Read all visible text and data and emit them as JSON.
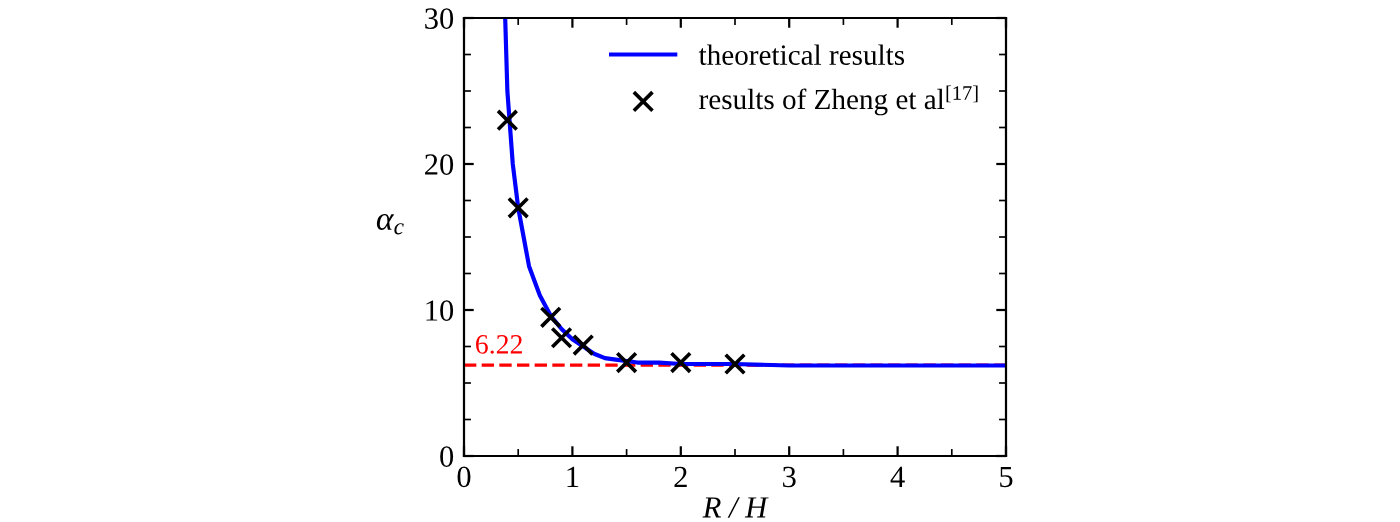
{
  "chart_data": {
    "type": "line",
    "xlabel": "R / H",
    "ylabel": "α$_{c}$",
    "xlim": [
      0,
      5
    ],
    "ylim": [
      0,
      30
    ],
    "xticks": [
      0,
      1,
      2,
      3,
      4,
      5
    ],
    "yticks": [
      0,
      10,
      20,
      30
    ],
    "series": [
      {
        "name": "theoretical results",
        "color": "#0000ff",
        "x": [
          0.38,
          0.4,
          0.45,
          0.5,
          0.55,
          0.6,
          0.7,
          0.8,
          0.9,
          1.0,
          1.1,
          1.2,
          1.3,
          1.4,
          1.6,
          1.8,
          2.0,
          2.5,
          3.0,
          4.0,
          5.0
        ],
        "values": [
          30,
          25,
          20,
          17,
          15,
          13,
          11,
          9.6,
          8.7,
          8.0,
          7.5,
          7.0,
          6.7,
          6.6,
          6.4,
          6.4,
          6.3,
          6.3,
          6.2,
          6.2,
          6.2
        ]
      },
      {
        "name": "results of Zheng et al$^{[17]}$",
        "type": "scatter",
        "marker": "cross",
        "color": "#000000",
        "x": [
          0.4,
          0.5,
          0.8,
          0.9,
          1.1,
          1.5,
          2.0,
          2.5
        ],
        "values": [
          23,
          17,
          9.5,
          8.1,
          7.6,
          6.4,
          6.4,
          6.3
        ]
      }
    ],
    "ref_lines": [
      {
        "axis": "y",
        "value": 6.22,
        "label": "6.22",
        "color": "#ff0000",
        "line_style": "dashed"
      }
    ],
    "legend": "top right",
    "grid": false
  }
}
